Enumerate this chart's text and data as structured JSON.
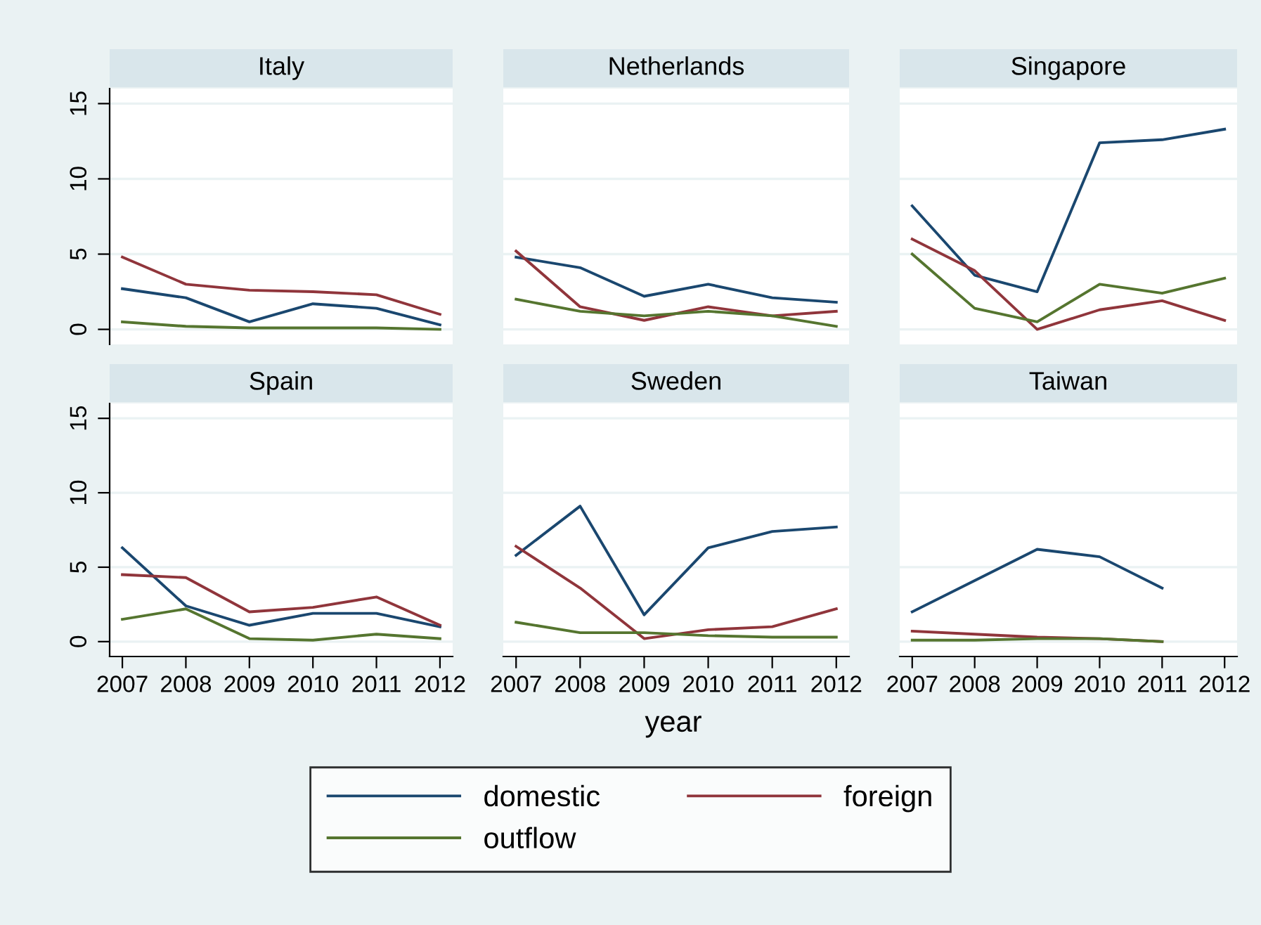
{
  "chart_data": [
    {
      "type": "line",
      "title": "Italy",
      "legend": "bottom",
      "x": [
        2007,
        2008,
        2009,
        2010,
        2011,
        2012
      ],
      "xlim": [
        2006.8,
        2012.2
      ],
      "xticks": [
        2007,
        2008,
        2009,
        2010,
        2011,
        2012
      ],
      "ylim": [
        -1,
        16
      ],
      "yticks": [
        0,
        5,
        10,
        15
      ],
      "grid": "y",
      "tick_labels": "y",
      "series": [
        {
          "name": "domestic",
          "color": "#1a476f",
          "values": [
            2.7,
            2.1,
            0.5,
            1.7,
            1.4,
            0.3
          ]
        },
        {
          "name": "foreign",
          "color": "#90353b",
          "values": [
            4.8,
            3.0,
            2.6,
            2.5,
            2.3,
            1.0
          ]
        },
        {
          "name": "outflow",
          "color": "#55752f",
          "values": [
            0.5,
            0.2,
            0.1,
            0.1,
            0.1,
            0.0
          ]
        }
      ]
    },
    {
      "type": "line",
      "title": "Netherlands",
      "x": [
        2007,
        2008,
        2009,
        2010,
        2011,
        2012
      ],
      "xlim": [
        2006.8,
        2012.2
      ],
      "xticks": [
        2007,
        2008,
        2009,
        2010,
        2011,
        2012
      ],
      "ylim": [
        -1,
        16
      ],
      "yticks": [
        0,
        5,
        10,
        15
      ],
      "grid": "y",
      "tick_labels": false,
      "series": [
        {
          "color": "#1a476f",
          "values": [
            4.8,
            4.1,
            2.2,
            3.0,
            2.1,
            1.8
          ]
        },
        {
          "color": "#90353b",
          "values": [
            5.2,
            1.5,
            0.6,
            1.5,
            0.9,
            1.2
          ]
        },
        {
          "color": "#55752f",
          "values": [
            2.0,
            1.2,
            0.9,
            1.2,
            0.9,
            0.2
          ]
        }
      ]
    },
    {
      "type": "line",
      "title": "Singapore",
      "x": [
        2007,
        2008,
        2009,
        2010,
        2011,
        2012
      ],
      "xlim": [
        2006.8,
        2012.2
      ],
      "xticks": [
        2007,
        2008,
        2009,
        2010,
        2011,
        2012
      ],
      "ylim": [
        -1,
        16
      ],
      "yticks": [
        0,
        5,
        10,
        15
      ],
      "grid": "y",
      "tick_labels": false,
      "series": [
        {
          "color": "#1a476f",
          "values": [
            8.2,
            3.6,
            2.5,
            12.4,
            12.6,
            13.3
          ]
        },
        {
          "color": "#90353b",
          "values": [
            6.0,
            3.9,
            0.0,
            1.3,
            1.9,
            0.6
          ]
        },
        {
          "color": "#55752f",
          "values": [
            5.0,
            1.4,
            0.5,
            3.0,
            2.4,
            3.4
          ]
        }
      ]
    },
    {
      "type": "line",
      "title": "Spain",
      "x": [
        2007,
        2008,
        2009,
        2010,
        2011,
        2012
      ],
      "xlim": [
        2006.8,
        2012.2
      ],
      "xticks": [
        2007,
        2008,
        2009,
        2010,
        2011,
        2012
      ],
      "ylim": [
        -1,
        16
      ],
      "yticks": [
        0,
        5,
        10,
        15
      ],
      "grid": "y",
      "series": [
        {
          "color": "#1a476f",
          "values": [
            6.3,
            2.4,
            1.1,
            1.9,
            1.9,
            1.0
          ]
        },
        {
          "color": "#90353b",
          "values": [
            4.5,
            4.3,
            2.0,
            2.3,
            3.0,
            1.1
          ]
        },
        {
          "color": "#55752f",
          "values": [
            1.5,
            2.2,
            0.2,
            0.1,
            0.5,
            0.2
          ]
        }
      ]
    },
    {
      "type": "line",
      "title": "Sweden",
      "xlabel": "year",
      "x": [
        2007,
        2008,
        2009,
        2010,
        2011,
        2012
      ],
      "xlim": [
        2006.8,
        2012.2
      ],
      "xticks": [
        2007,
        2008,
        2009,
        2010,
        2011,
        2012
      ],
      "ylim": [
        -1,
        16
      ],
      "yticks": [
        0,
        5,
        10,
        15
      ],
      "grid": "y",
      "tick_labels": "x",
      "series": [
        {
          "color": "#1a476f",
          "values": [
            5.8,
            9.1,
            1.8,
            6.3,
            7.4,
            7.7
          ]
        },
        {
          "color": "#90353b",
          "values": [
            6.4,
            3.6,
            0.2,
            0.8,
            1.0,
            2.2
          ]
        },
        {
          "color": "#55752f",
          "values": [
            1.3,
            0.6,
            0.6,
            0.4,
            0.3,
            0.3
          ]
        }
      ]
    },
    {
      "type": "line",
      "title": "Taiwan",
      "xlim": [
        2006.8,
        2012.2
      ],
      "xticks": [
        2007,
        2008,
        2009,
        2010,
        2011,
        2012
      ],
      "ylim": [
        -1,
        16
      ],
      "yticks": [
        0,
        5,
        10,
        15
      ],
      "grid": "y",
      "tick_labels": "x",
      "series": [
        {
          "color": "#1a476f",
          "x": [
            2007,
            2008,
            2009,
            2010,
            2011
          ],
          "values": [
            2.0,
            4.1,
            6.2,
            5.7,
            3.6
          ]
        },
        {
          "color": "#90353b",
          "x": [
            2007,
            2008,
            2009,
            2010,
            2011
          ],
          "values": [
            0.7,
            0.5,
            0.3,
            0.2,
            0.0
          ]
        },
        {
          "color": "#55752f",
          "x": [
            2007,
            2008,
            2009,
            2010,
            2011
          ],
          "values": [
            0.1,
            0.1,
            0.2,
            0.2,
            0.0
          ]
        }
      ]
    }
  ]
}
